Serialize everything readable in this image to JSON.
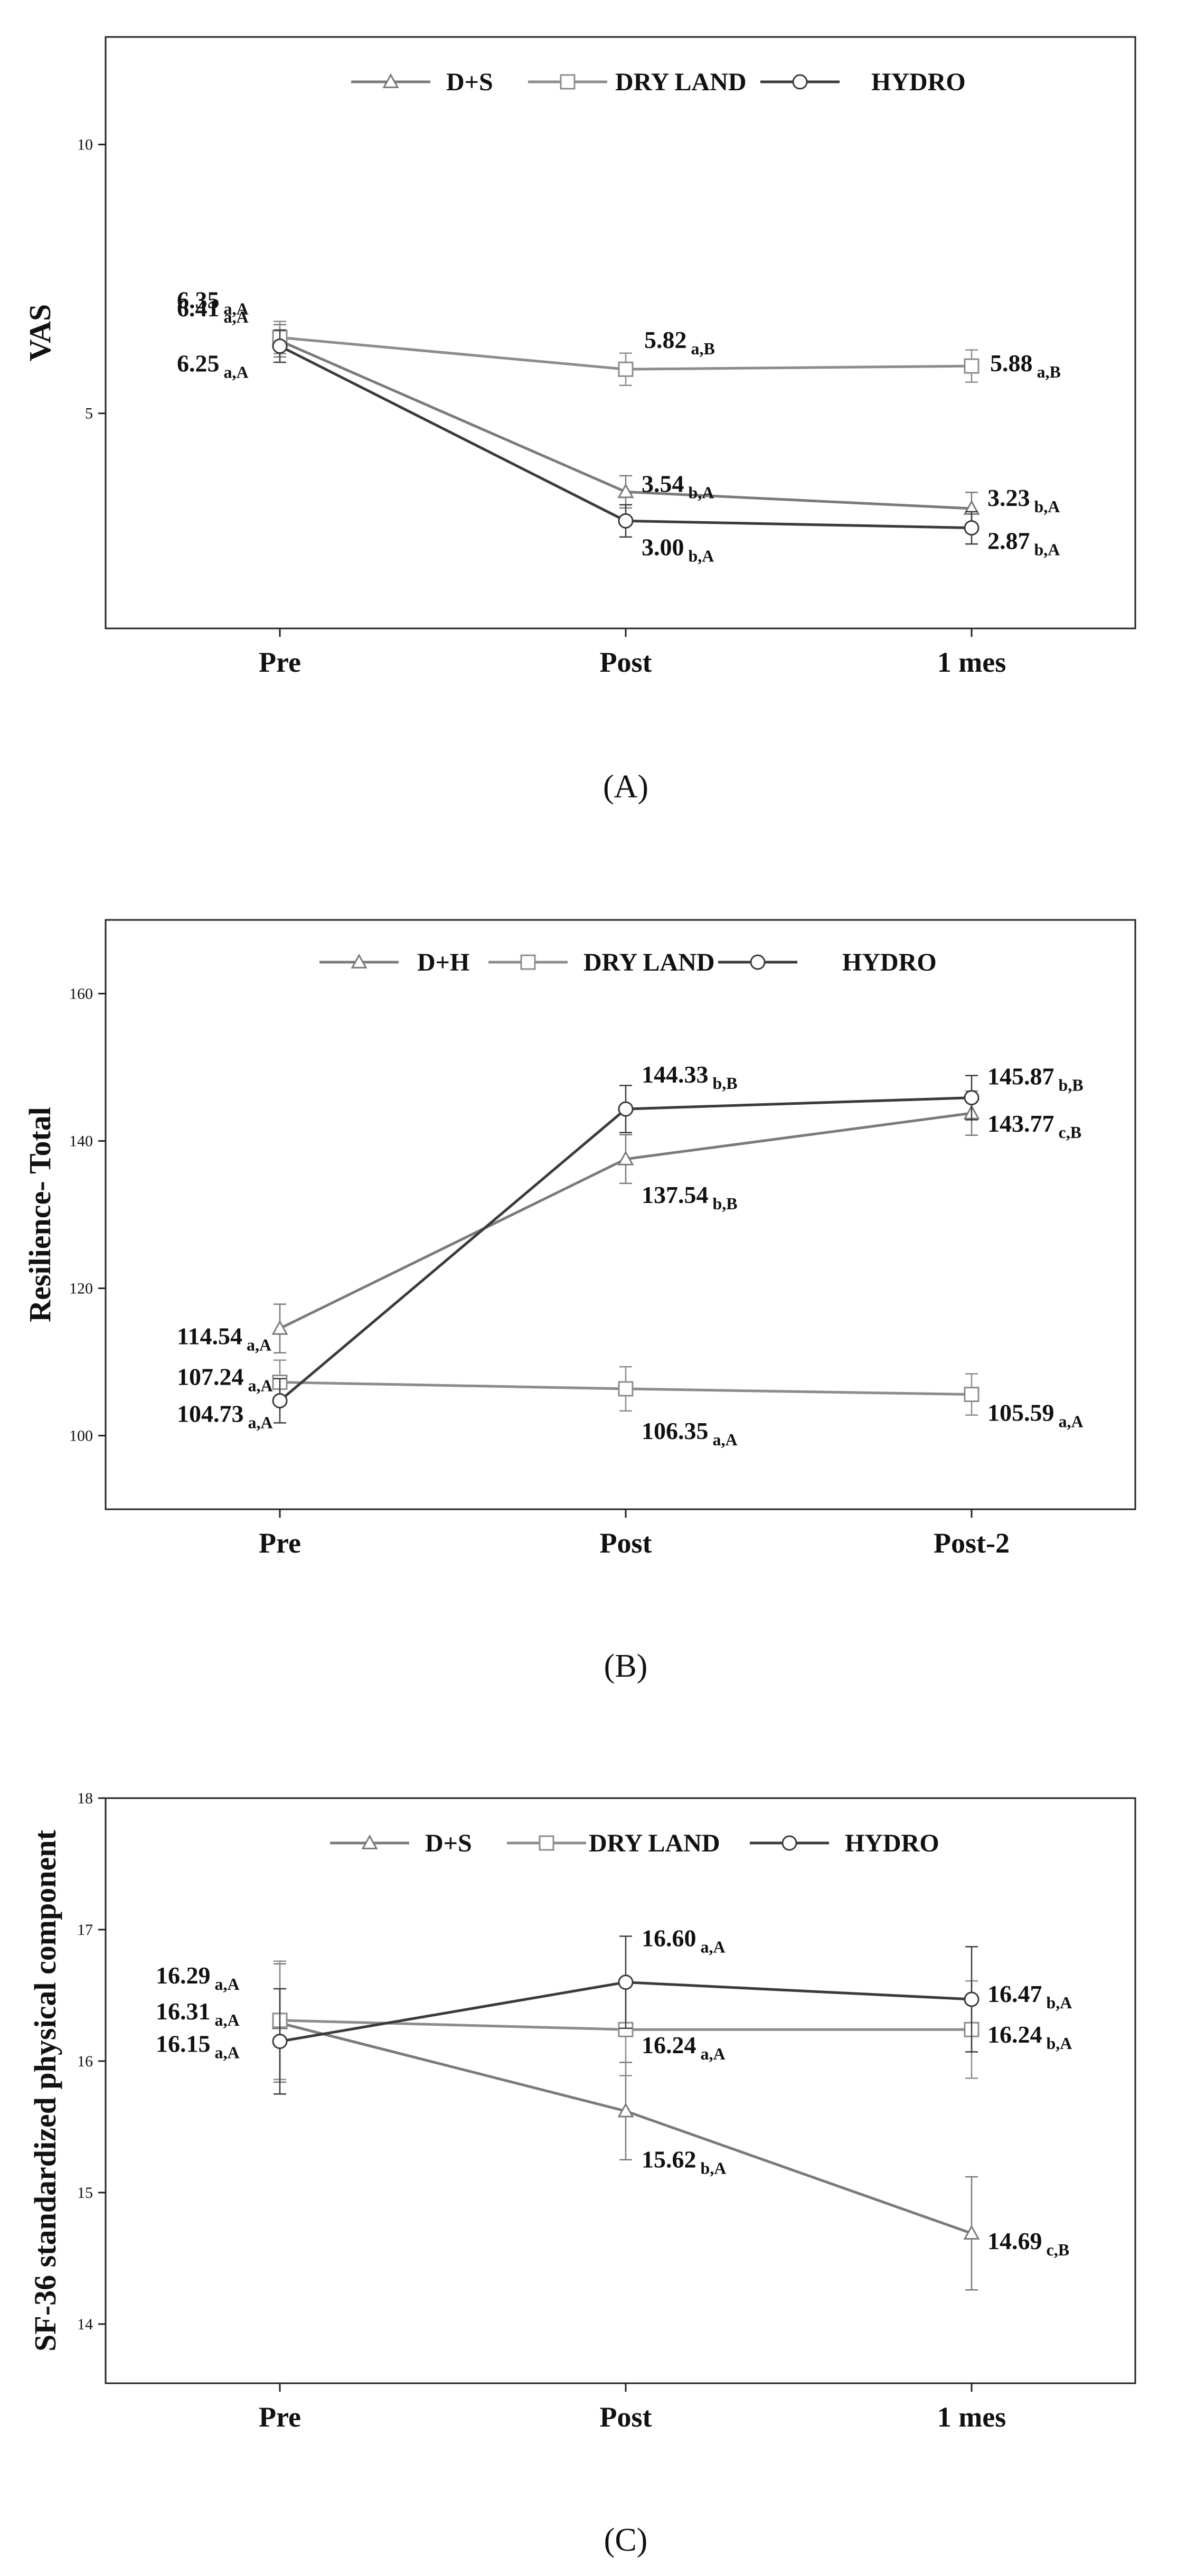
{
  "chart_data": [
    {
      "type": "line",
      "panel": "A",
      "caption": "(A)",
      "ylabel": "VAS",
      "categories": [
        "Pre",
        "Post",
        "1 mes"
      ],
      "yticks": [
        5,
        10
      ],
      "ylim": [
        1,
        12
      ],
      "grid": false,
      "legend_position": "top",
      "series": [
        {
          "name": "D+S",
          "marker": "triangle",
          "color": "#7a7a7a",
          "values": [
            6.35,
            3.54,
            3.23
          ],
          "err": [
            0.3,
            0.3,
            0.3
          ],
          "labels": [
            {
              "main": "6.35",
              "sub": "a,A"
            },
            {
              "main": "3.54",
              "sub": "b,A"
            },
            {
              "main": "3.23",
              "sub": "b,A"
            }
          ]
        },
        {
          "name": "DRY LAND",
          "marker": "square",
          "color": "#8c8c8c",
          "values": [
            6.41,
            5.82,
            5.88
          ],
          "err": [
            0.3,
            0.3,
            0.3
          ],
          "labels": [
            {
              "main": "6.41",
              "sub": "a,A"
            },
            {
              "main": "5.82",
              "sub": "a,B"
            },
            {
              "main": "5.88",
              "sub": "a,B"
            }
          ]
        },
        {
          "name": "HYDRO",
          "marker": "circle",
          "color": "#3a3a3a",
          "values": [
            6.25,
            3.0,
            2.87
          ],
          "err": [
            0.3,
            0.3,
            0.3
          ],
          "labels": [
            {
              "main": "6.25",
              "sub": "a,A"
            },
            {
              "main": "3.00",
              "sub": "b,A"
            },
            {
              "main": "2.87",
              "sub": "b,A"
            }
          ]
        }
      ]
    },
    {
      "type": "line",
      "panel": "B",
      "caption": "(B)",
      "ylabel": "Resilience- Total",
      "categories": [
        "Pre",
        "Post",
        "Post-2"
      ],
      "yticks": [
        100,
        120,
        140,
        160
      ],
      "ylim": [
        90,
        170
      ],
      "grid": false,
      "legend_position": "top",
      "series": [
        {
          "name": "D+H",
          "marker": "triangle",
          "color": "#7a7a7a",
          "values": [
            114.54,
            137.54,
            143.77
          ],
          "err": [
            3.3,
            3.3,
            3.0
          ],
          "labels": [
            {
              "main": "114.54",
              "sub": "a,A"
            },
            {
              "main": "137.54",
              "sub": "b,B"
            },
            {
              "main": "143.77",
              "sub": "c,B"
            }
          ]
        },
        {
          "name": "DRY LAND",
          "marker": "square",
          "color": "#8c8c8c",
          "values": [
            107.24,
            106.35,
            105.59
          ],
          "err": [
            3.0,
            3.0,
            2.8
          ],
          "labels": [
            {
              "main": "107.24",
              "sub": "a,A"
            },
            {
              "main": "106.35",
              "sub": "a,A"
            },
            {
              "main": "105.59",
              "sub": "a,A"
            }
          ]
        },
        {
          "name": "HYDRO",
          "marker": "circle",
          "color": "#3a3a3a",
          "values": [
            104.73,
            144.33,
            145.87
          ],
          "err": [
            3.0,
            3.2,
            3.0
          ],
          "labels": [
            {
              "main": "104.73",
              "sub": "a,A"
            },
            {
              "main": "144.33",
              "sub": "b,B"
            },
            {
              "main": "145.87",
              "sub": "b,B"
            }
          ]
        }
      ]
    },
    {
      "type": "line",
      "panel": "C",
      "caption": "(C)",
      "ylabel": "SF-36 standardized physical component",
      "categories": [
        "Pre",
        "Post",
        "1 mes"
      ],
      "yticks": [
        14,
        15,
        16,
        17,
        18
      ],
      "ylim": [
        13.55,
        18
      ],
      "grid": false,
      "legend_position": "top",
      "series": [
        {
          "name": "D+S",
          "marker": "triangle",
          "color": "#7a7a7a",
          "values": [
            16.29,
            15.62,
            14.69
          ],
          "err": [
            0.45,
            0.37,
            0.43
          ],
          "labels": [
            {
              "main": "16.29",
              "sub": "a,A"
            },
            {
              "main": "15.62",
              "sub": "b,A"
            },
            {
              "main": "14.69",
              "sub": "c,B"
            }
          ]
        },
        {
          "name": "DRY LAND",
          "marker": "square",
          "color": "#8c8c8c",
          "values": [
            16.31,
            16.24,
            16.24
          ],
          "err": [
            0.45,
            0.35,
            0.37
          ],
          "labels": [
            {
              "main": "16.31",
              "sub": "a,A"
            },
            {
              "main": "16.24",
              "sub": "a,A"
            },
            {
              "main": "16.24",
              "sub": "b,A"
            }
          ]
        },
        {
          "name": "HYDRO",
          "marker": "circle",
          "color": "#3a3a3a",
          "values": [
            16.15,
            16.6,
            16.47
          ],
          "err": [
            0.4,
            0.35,
            0.4
          ],
          "labels": [
            {
              "main": "16.15",
              "sub": "a,A"
            },
            {
              "main": "16.60",
              "sub": "a,A"
            },
            {
              "main": "16.47",
              "sub": "b,A"
            }
          ]
        }
      ]
    }
  ]
}
